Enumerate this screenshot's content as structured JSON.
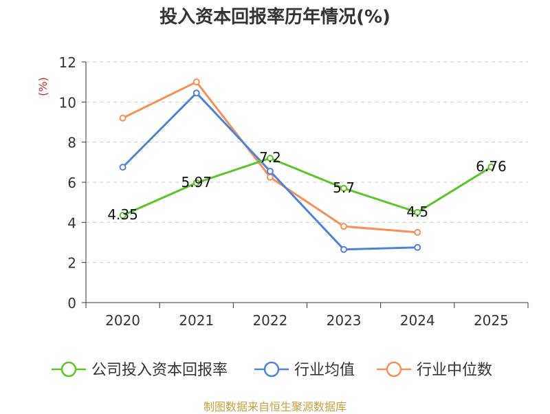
{
  "chart_data": {
    "type": "line",
    "title": "投入资本回报率历年情况(%)",
    "ylabel": "(%)",
    "xlabel": "",
    "categories": [
      "2020",
      "2021",
      "2022",
      "2023",
      "2024",
      "2025"
    ],
    "ylim": [
      0,
      12
    ],
    "yticks": [
      0,
      2,
      4,
      6,
      8,
      10,
      12
    ],
    "grid": true,
    "legend_position": "bottom",
    "series": [
      {
        "name": "公司投入资本回报率",
        "color": "#5cc42a",
        "values": [
          4.35,
          5.97,
          7.2,
          5.7,
          4.5,
          6.76
        ],
        "labels": [
          "4.35",
          "5.97",
          "7.2",
          "5.7",
          "4.5",
          "6.76"
        ]
      },
      {
        "name": "行业均值",
        "color": "#4f83d8",
        "values": [
          6.75,
          10.45,
          6.55,
          2.65,
          2.75,
          null
        ]
      },
      {
        "name": "行业中位数",
        "color": "#f59058",
        "values": [
          9.2,
          11.0,
          6.25,
          3.8,
          3.5,
          null
        ]
      }
    ]
  },
  "source": "制图数据来自恒生聚源数据库"
}
